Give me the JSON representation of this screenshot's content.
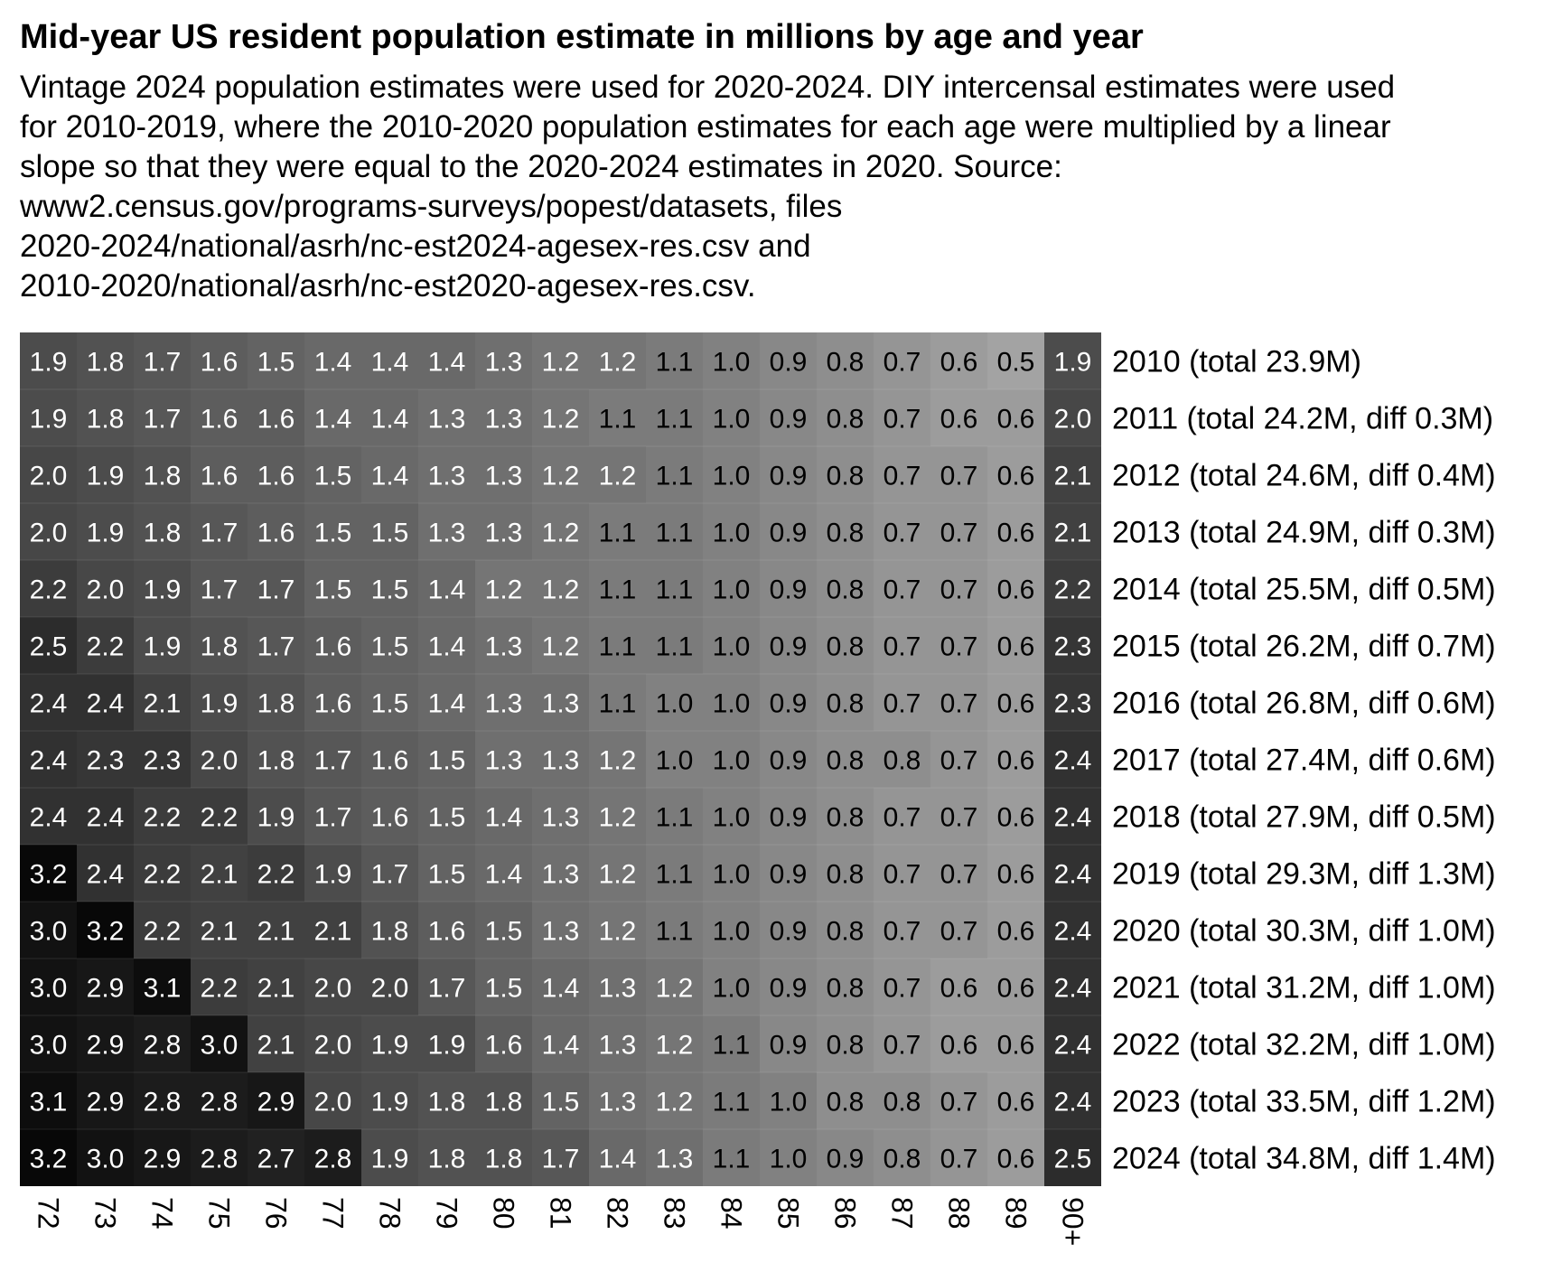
{
  "chart_data": {
    "type": "heatmap",
    "title": "Mid-year US resident population estimate in millions by age and year",
    "subtitle_lines": [
      "Vintage 2024 population estimates were used for 2020-2024. DIY intercensal estimates were used",
      "for 2010-2019, where the 2010-2020 population estimates for each age were multiplied by a linear",
      "slope so that they were equal to the 2020-2024 estimates in 2020. Source:",
      "www2.census.gov/programs-surveys/popest/datasets, files",
      "2020-2024/national/asrh/nc-est2024-agesex-res.csv and",
      "2010-2020/national/asrh/nc-est2020-agesex-res.csv."
    ],
    "x_categories": [
      "72",
      "73",
      "74",
      "75",
      "76",
      "77",
      "78",
      "79",
      "80",
      "81",
      "82",
      "83",
      "84",
      "85",
      "86",
      "87",
      "88",
      "89",
      "90+"
    ],
    "row_labels": [
      "2010 (total 23.9M)",
      "2011 (total 24.2M, diff 0.3M)",
      "2012 (total 24.6M, diff 0.4M)",
      "2013 (total 24.9M, diff 0.3M)",
      "2014 (total 25.5M, diff 0.5M)",
      "2015 (total 26.2M, diff 0.7M)",
      "2016 (total 26.8M, diff 0.6M)",
      "2017 (total 27.4M, diff 0.6M)",
      "2018 (total 27.9M, diff 0.5M)",
      "2019 (total 29.3M, diff 1.3M)",
      "2020 (total 30.3M, diff 1.0M)",
      "2021 (total 31.2M, diff 1.0M)",
      "2022 (total 32.2M, diff 1.0M)",
      "2023 (total 33.5M, diff 1.2M)",
      "2024 (total 34.8M, diff 1.4M)"
    ],
    "values": [
      [
        1.9,
        1.8,
        1.7,
        1.6,
        1.5,
        1.4,
        1.4,
        1.4,
        1.3,
        1.2,
        1.2,
        1.1,
        1.0,
        0.9,
        0.8,
        0.7,
        0.6,
        0.5,
        1.9
      ],
      [
        1.9,
        1.8,
        1.7,
        1.6,
        1.6,
        1.4,
        1.4,
        1.3,
        1.3,
        1.2,
        1.1,
        1.1,
        1.0,
        0.9,
        0.8,
        0.7,
        0.6,
        0.6,
        2.0
      ],
      [
        2.0,
        1.9,
        1.8,
        1.6,
        1.6,
        1.5,
        1.4,
        1.3,
        1.3,
        1.2,
        1.2,
        1.1,
        1.0,
        0.9,
        0.8,
        0.7,
        0.7,
        0.6,
        2.1
      ],
      [
        2.0,
        1.9,
        1.8,
        1.7,
        1.6,
        1.5,
        1.5,
        1.3,
        1.3,
        1.2,
        1.1,
        1.1,
        1.0,
        0.9,
        0.8,
        0.7,
        0.7,
        0.6,
        2.1
      ],
      [
        2.2,
        2.0,
        1.9,
        1.7,
        1.7,
        1.5,
        1.5,
        1.4,
        1.2,
        1.2,
        1.1,
        1.1,
        1.0,
        0.9,
        0.8,
        0.7,
        0.7,
        0.6,
        2.2
      ],
      [
        2.5,
        2.2,
        1.9,
        1.8,
        1.7,
        1.6,
        1.5,
        1.4,
        1.3,
        1.2,
        1.1,
        1.1,
        1.0,
        0.9,
        0.8,
        0.7,
        0.7,
        0.6,
        2.3
      ],
      [
        2.4,
        2.4,
        2.1,
        1.9,
        1.8,
        1.6,
        1.5,
        1.4,
        1.3,
        1.3,
        1.1,
        1.0,
        1.0,
        0.9,
        0.8,
        0.7,
        0.7,
        0.6,
        2.3
      ],
      [
        2.4,
        2.3,
        2.3,
        2.0,
        1.8,
        1.7,
        1.6,
        1.5,
        1.3,
        1.3,
        1.2,
        1.0,
        1.0,
        0.9,
        0.8,
        0.8,
        0.7,
        0.6,
        2.4
      ],
      [
        2.4,
        2.4,
        2.2,
        2.2,
        1.9,
        1.7,
        1.6,
        1.5,
        1.4,
        1.3,
        1.2,
        1.1,
        1.0,
        0.9,
        0.8,
        0.7,
        0.7,
        0.6,
        2.4
      ],
      [
        3.2,
        2.4,
        2.2,
        2.1,
        2.2,
        1.9,
        1.7,
        1.5,
        1.4,
        1.3,
        1.2,
        1.1,
        1.0,
        0.9,
        0.8,
        0.7,
        0.7,
        0.6,
        2.4
      ],
      [
        3.0,
        3.2,
        2.2,
        2.1,
        2.1,
        2.1,
        1.8,
        1.6,
        1.5,
        1.3,
        1.2,
        1.1,
        1.0,
        0.9,
        0.8,
        0.7,
        0.7,
        0.6,
        2.4
      ],
      [
        3.0,
        2.9,
        3.1,
        2.2,
        2.1,
        2.0,
        2.0,
        1.7,
        1.5,
        1.4,
        1.3,
        1.2,
        1.0,
        0.9,
        0.8,
        0.7,
        0.6,
        0.6,
        2.4
      ],
      [
        3.0,
        2.9,
        2.8,
        3.0,
        2.1,
        2.0,
        1.9,
        1.9,
        1.6,
        1.4,
        1.3,
        1.2,
        1.1,
        0.9,
        0.8,
        0.7,
        0.6,
        0.6,
        2.4
      ],
      [
        3.1,
        2.9,
        2.8,
        2.8,
        2.9,
        2.0,
        1.9,
        1.8,
        1.8,
        1.5,
        1.3,
        1.2,
        1.1,
        1.0,
        0.8,
        0.8,
        0.7,
        0.6,
        2.4
      ],
      [
        3.2,
        3.0,
        2.9,
        2.8,
        2.7,
        2.8,
        1.9,
        1.8,
        1.8,
        1.7,
        1.4,
        1.3,
        1.1,
        1.0,
        0.9,
        0.8,
        0.7,
        0.6,
        2.5
      ]
    ],
    "color_scale": {
      "low": "#d0d0d0",
      "high": "#080808",
      "text_dark": "#000000",
      "text_light": "#ffffff"
    }
  }
}
